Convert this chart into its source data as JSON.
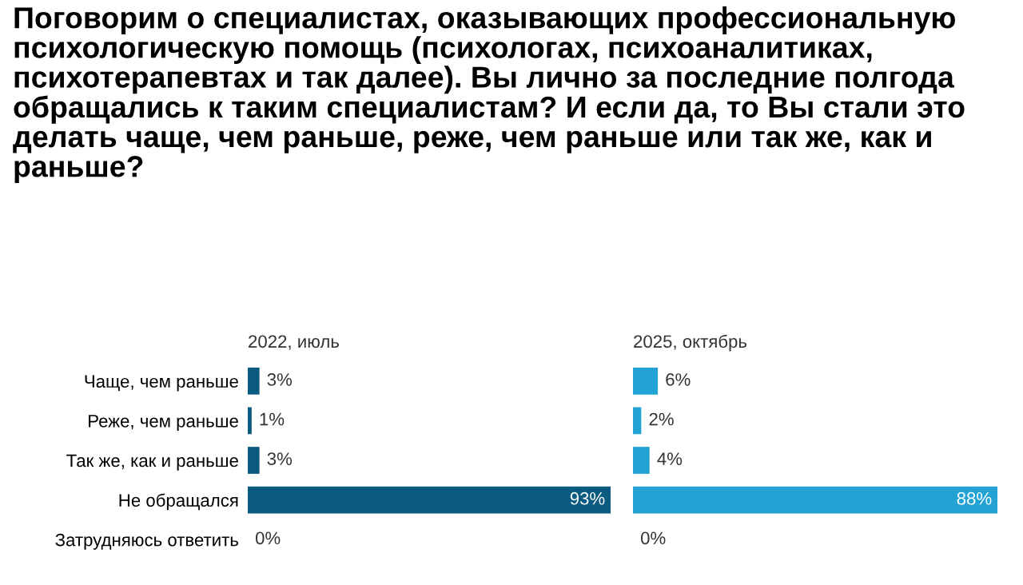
{
  "chart_data": [
    {
      "type": "bar",
      "orientation": "horizontal",
      "title": "Поговорим о специалистах, оказывающих профессиональную психологическую помощь (психологах, психоаналитиках, психотерапевтах и так далее). Вы лично за последние полгода обращались к таким специалистам? И если да, то Вы стали это делать чаще, чем раньше, реже, чем раньше или так же, как и раньше?",
      "subtitle": "2022, июль",
      "categories": [
        "Чаще, чем раньше",
        "Реже, чем раньше",
        "Так же, как и раньше",
        "Не обращался",
        "Затрудняюсь ответить"
      ],
      "values": [
        3,
        1,
        3,
        93,
        0
      ],
      "value_labels": [
        "3%",
        "1%",
        "3%",
        "93%",
        "0%"
      ],
      "color": "#0b5a80",
      "tick_labels": "x"
    },
    {
      "type": "bar",
      "orientation": "horizontal",
      "subtitle": "2025, октябрь",
      "values": [
        6,
        2,
        4,
        88,
        0
      ],
      "value_labels": [
        "6%",
        "2%",
        "4%",
        "88%",
        "0%"
      ],
      "color": "#23a3d3",
      "tick_labels": false
    }
  ]
}
